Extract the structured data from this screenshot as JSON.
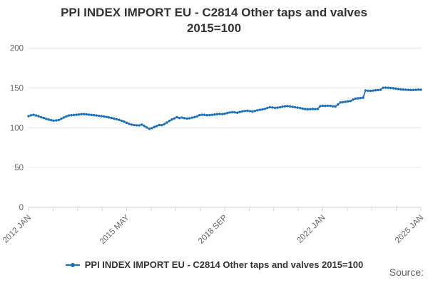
{
  "title": {
    "line1": "PPI INDEX IMPORT EU - C2814 Other taps and valves",
    "line2": "2015=100"
  },
  "legend": {
    "label": "PPI INDEX IMPORT EU - C2814 Other taps and valves 2015=100"
  },
  "source": {
    "label": "Source:"
  },
  "colors": {
    "line": "#1d70b8",
    "gridline": "#e6e6e6",
    "axis": "#ccd6eb",
    "title_text": "#333333",
    "tick_text": "#666666"
  },
  "chart_data": {
    "type": "line",
    "title": "PPI INDEX IMPORT EU - C2814 Other taps and valves 2015=100",
    "xlabel": "",
    "ylabel": "",
    "ylim": [
      0,
      200
    ],
    "yticks": [
      0,
      50,
      100,
      150,
      200
    ],
    "x_start": "2012 JAN",
    "x_end": "2025 JAN",
    "frequency": "monthly",
    "xticklabels": [
      "2012 JAN",
      "2015 MAY",
      "2018 SEP",
      "2022 JAN",
      "2025 JAN"
    ],
    "grid": "horizontal",
    "legend_position": "bottom",
    "series": [
      {
        "name": "PPI INDEX IMPORT EU - C2814 Other taps and valves 2015=100",
        "values": [
          114.5,
          115.6,
          116.3,
          115.4,
          114.4,
          113.3,
          112.3,
          111.1,
          110.2,
          109.4,
          108.9,
          109.2,
          109.7,
          111.2,
          112.8,
          114.3,
          115.4,
          115.7,
          116.0,
          116.3,
          116.6,
          117.0,
          117.1,
          116.8,
          116.4,
          116.1,
          115.8,
          115.4,
          114.9,
          114.5,
          114.1,
          113.5,
          112.9,
          112.2,
          111.4,
          110.7,
          109.9,
          108.8,
          107.6,
          106.2,
          104.9,
          103.9,
          103.3,
          103.0,
          102.9,
          103.9,
          102.3,
          100.3,
          98.6,
          99.4,
          100.9,
          102.1,
          103.4,
          103.2,
          104.5,
          106.4,
          108.6,
          110.3,
          111.7,
          113.3,
          112.1,
          112.7,
          112.0,
          111.5,
          111.8,
          112.6,
          113.3,
          114.3,
          115.8,
          116.3,
          116.1,
          115.7,
          115.9,
          116.2,
          116.6,
          117.0,
          117.3,
          117.1,
          117.6,
          118.4,
          119.1,
          119.5,
          119.3,
          118.8,
          119.7,
          120.5,
          121.0,
          121.3,
          120.9,
          120.4,
          121.0,
          121.9,
          122.5,
          123.0,
          123.7,
          124.9,
          125.8,
          125.4,
          124.9,
          125.2,
          125.7,
          126.4,
          127.0,
          127.2,
          126.7,
          126.2,
          125.7,
          125.2,
          124.7,
          124.0,
          123.4,
          123.2,
          123.3,
          123.5,
          123.4,
          123.6,
          127.1,
          127.5,
          127.4,
          127.6,
          127.5,
          126.9,
          126.6,
          129.1,
          131.7,
          132.1,
          132.6,
          133.1,
          133.5,
          135.3,
          136.5,
          136.9,
          137.3,
          137.7,
          146.8,
          146.4,
          146.2,
          146.6,
          147.0,
          147.3,
          147.7,
          150.2,
          150.3,
          150.1,
          149.9,
          149.6,
          149.1,
          148.6,
          148.2,
          147.9,
          147.7,
          147.5,
          147.3,
          147.4,
          147.6,
          147.8,
          147.7
        ]
      }
    ]
  }
}
